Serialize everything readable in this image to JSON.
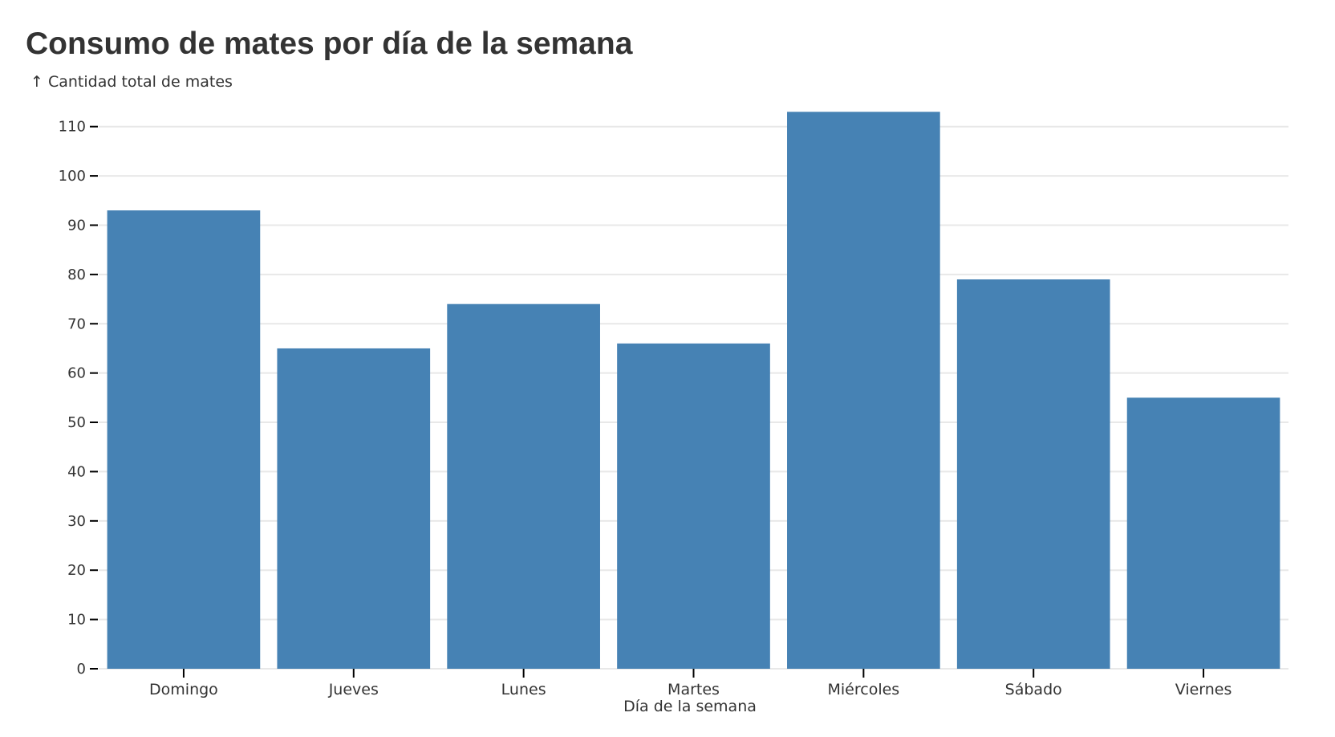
{
  "chart_data": {
    "type": "bar",
    "title": "Consumo de mates por día de la semana",
    "ylabel": "↑ Cantidad total de mates",
    "xlabel": "Día de la semana",
    "categories": [
      "Domingo",
      "Jueves",
      "Lunes",
      "Martes",
      "Miércoles",
      "Sábado",
      "Viernes"
    ],
    "values": [
      93,
      65,
      74,
      66,
      113,
      79,
      55
    ],
    "ylim": [
      0,
      115
    ],
    "yticks": [
      0,
      10,
      20,
      30,
      40,
      50,
      60,
      70,
      80,
      90,
      100,
      110
    ],
    "grid": true,
    "bar_color": "#4682b4",
    "grid_color": "#e8e8e8",
    "text_color": "#333333"
  }
}
